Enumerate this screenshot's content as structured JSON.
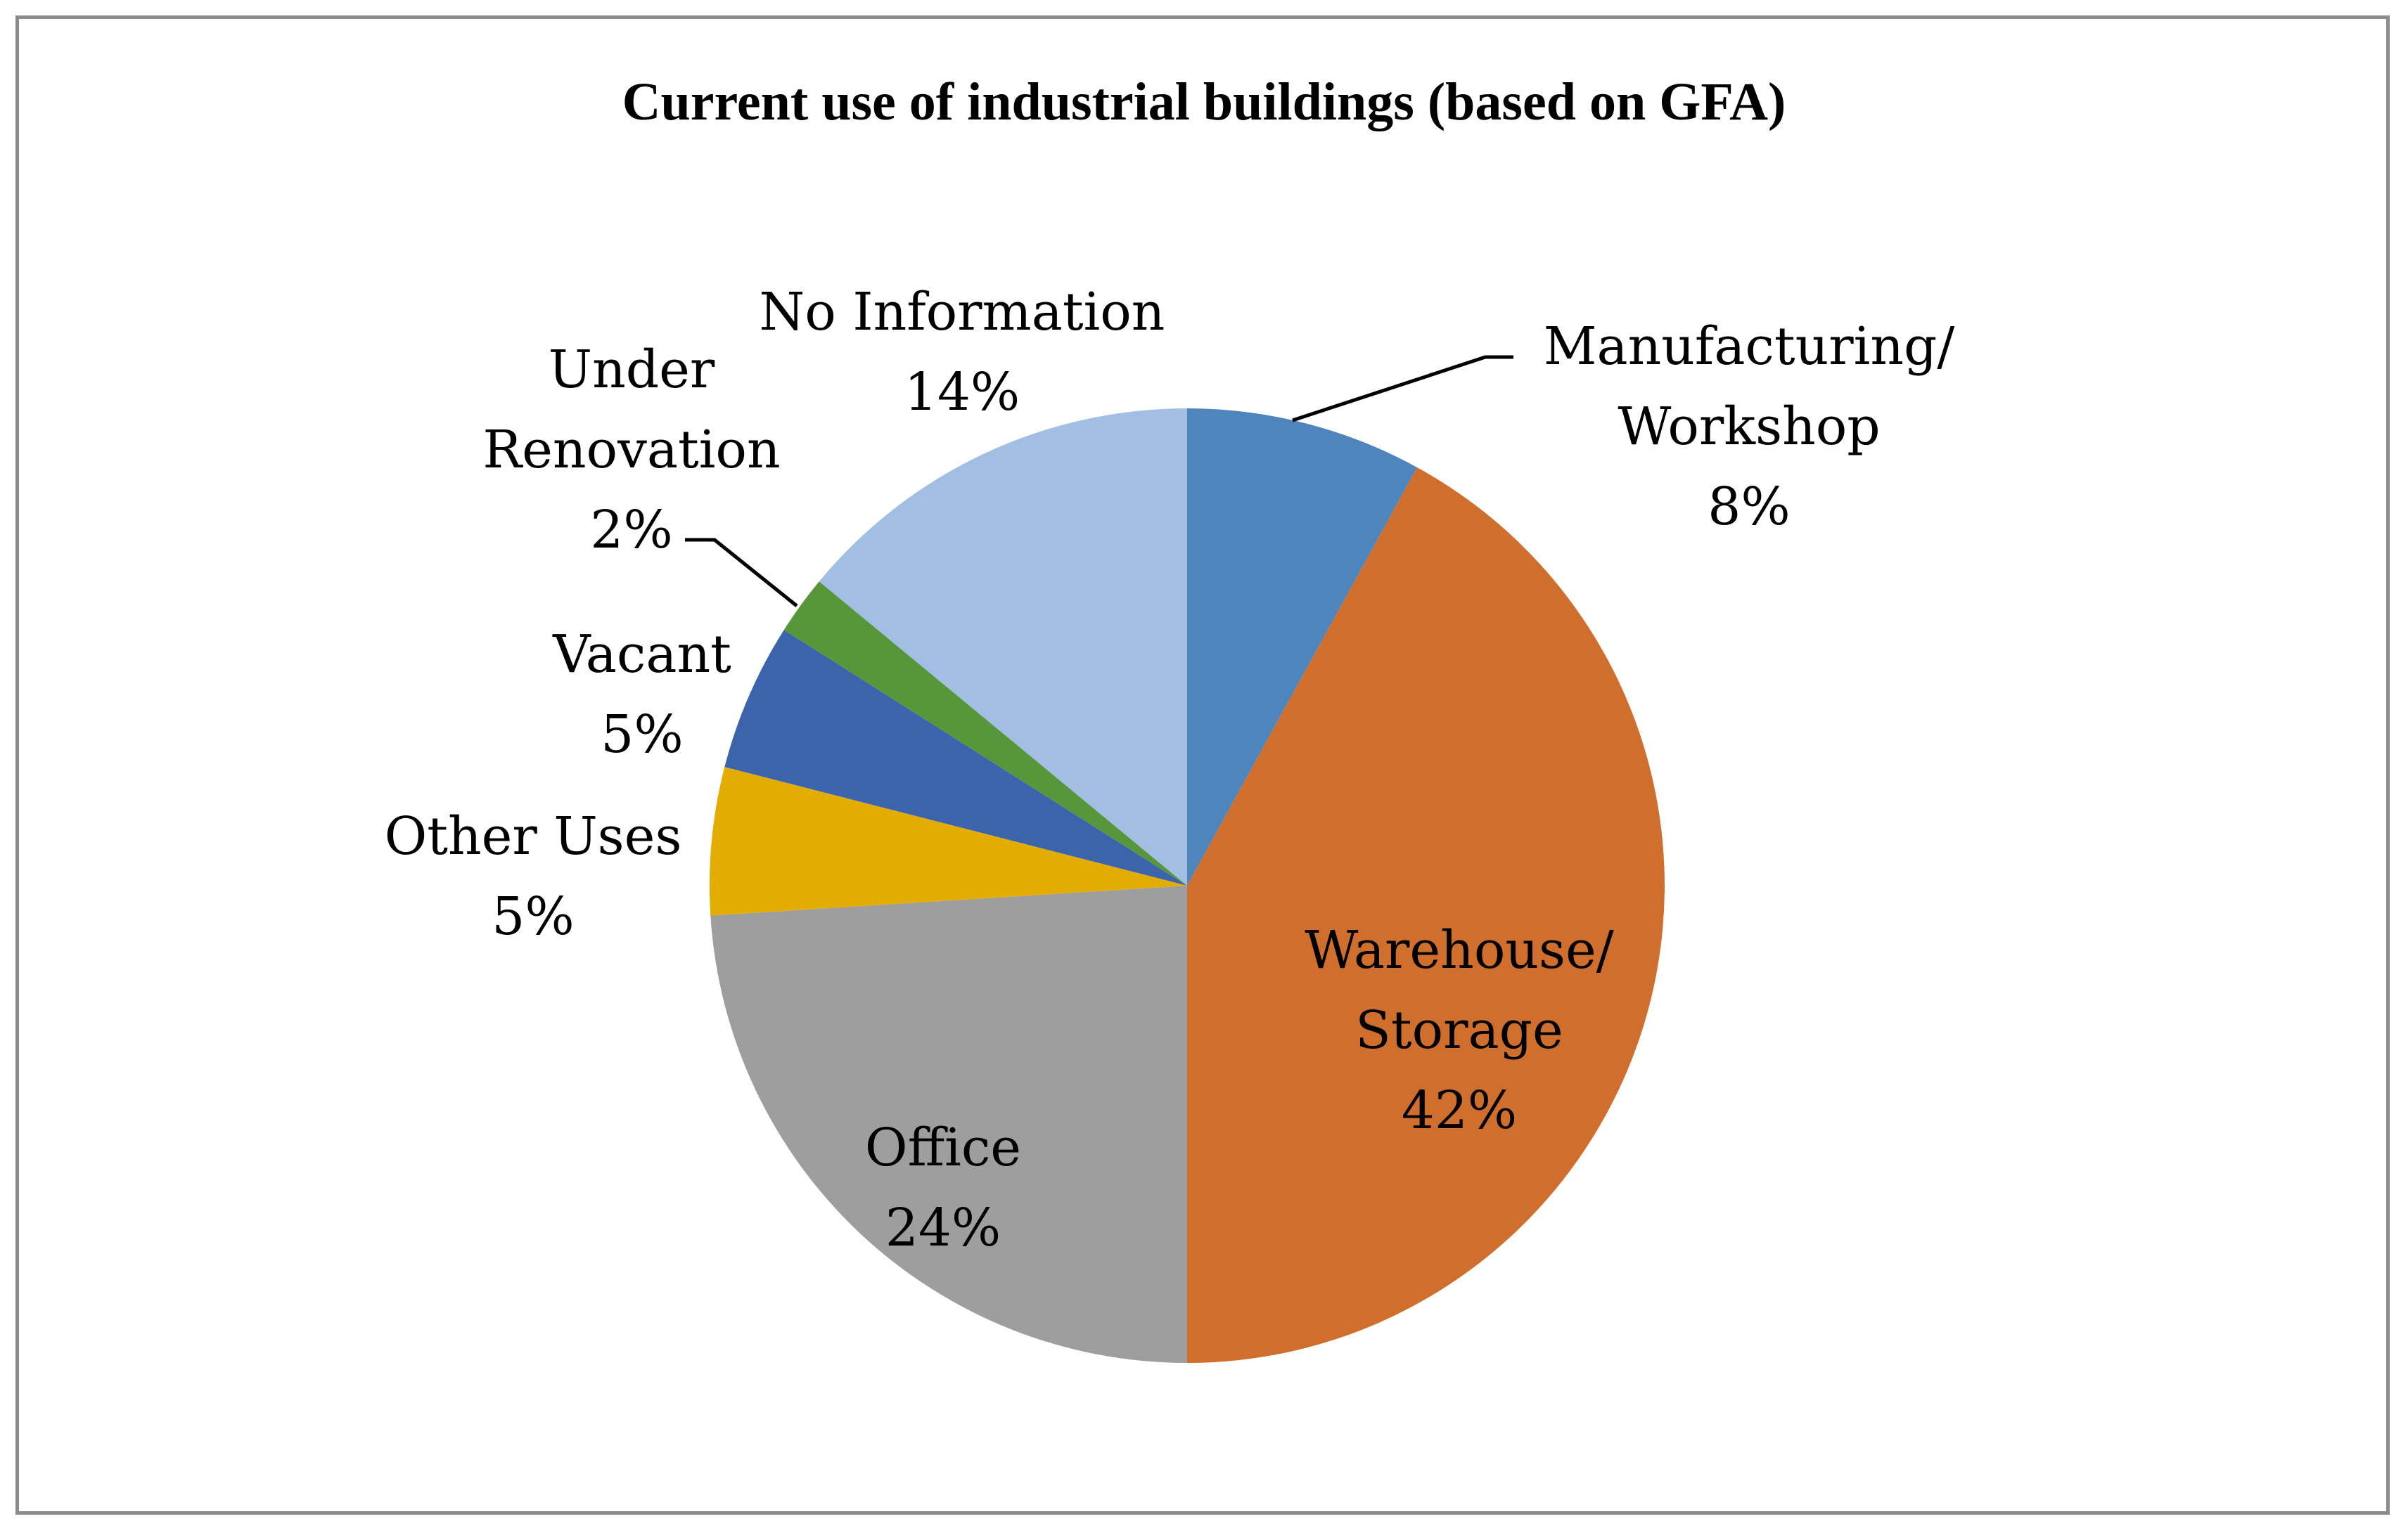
{
  "title": "Current use of industrial buildings (based on GFA)",
  "chart_data": {
    "type": "pie",
    "title": "Current use of industrial buildings (based on GFA)",
    "start_angle_deg": 0,
    "direction": "clockwise",
    "legend_position": "none",
    "value_suffix": "%",
    "slices": [
      {
        "label": "Manufacturing/Workshop",
        "value": 8,
        "color": "#4E85BD",
        "label_lines": [
          "Manufacturing/",
          "Workshop",
          "8%"
        ],
        "placement": "outside",
        "leader_line": true
      },
      {
        "label": "Warehouse/Storage",
        "value": 42,
        "color": "#CF6E2D",
        "label_lines": [
          "Warehouse/",
          "Storage",
          "42%"
        ],
        "placement": "inside",
        "leader_line": false
      },
      {
        "label": "Office",
        "value": 24,
        "color": "#9E9E9E",
        "label_lines": [
          "Office",
          "24%"
        ],
        "placement": "inside",
        "leader_line": false
      },
      {
        "label": "Other Uses",
        "value": 5,
        "color": "#E3AC00",
        "label_lines": [
          "Other Uses",
          "5%"
        ],
        "placement": "outside",
        "leader_line": false
      },
      {
        "label": "Vacant",
        "value": 5,
        "color": "#3C64AC",
        "label_lines": [
          "Vacant",
          "5%"
        ],
        "placement": "outside",
        "leader_line": false
      },
      {
        "label": "Under Renovation",
        "value": 2,
        "color": "#58963C",
        "label_lines": [
          "Under",
          "Renovation",
          "2%"
        ],
        "placement": "outside",
        "leader_line": true
      },
      {
        "label": "No Information",
        "value": 14,
        "color": "#A2BEE2",
        "label_lines": [
          "No Information",
          "14%"
        ],
        "placement": "outside",
        "leader_line": false
      }
    ]
  }
}
